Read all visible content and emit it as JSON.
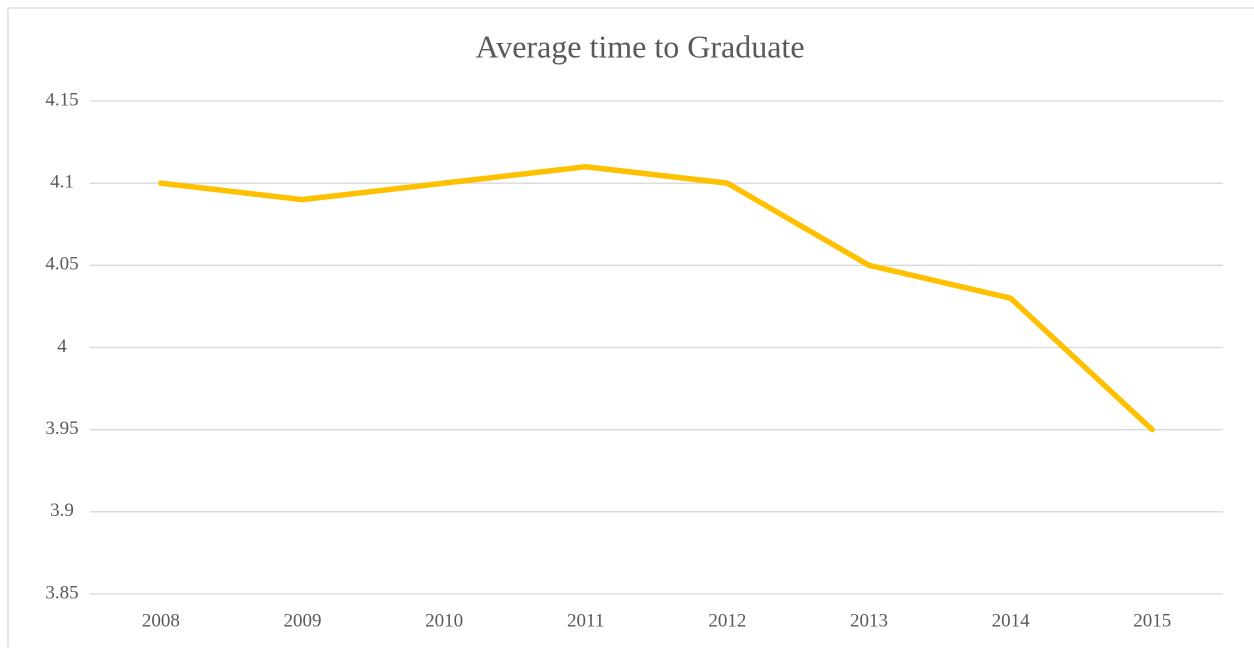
{
  "chart_data": {
    "type": "line",
    "title": "Average time to Graduate",
    "categories": [
      "2008",
      "2009",
      "2010",
      "2011",
      "2012",
      "2013",
      "2014",
      "2015"
    ],
    "series": [
      {
        "name": "Average time to Graduate",
        "color": "#ffc000",
        "values": [
          4.1,
          4.09,
          4.1,
          4.11,
          4.1,
          4.05,
          4.03,
          3.95
        ]
      }
    ],
    "ylim": [
      3.85,
      4.15
    ],
    "yticks": [
      3.85,
      3.9,
      3.95,
      4,
      4.05,
      4.1,
      4.15
    ],
    "grid": true
  }
}
